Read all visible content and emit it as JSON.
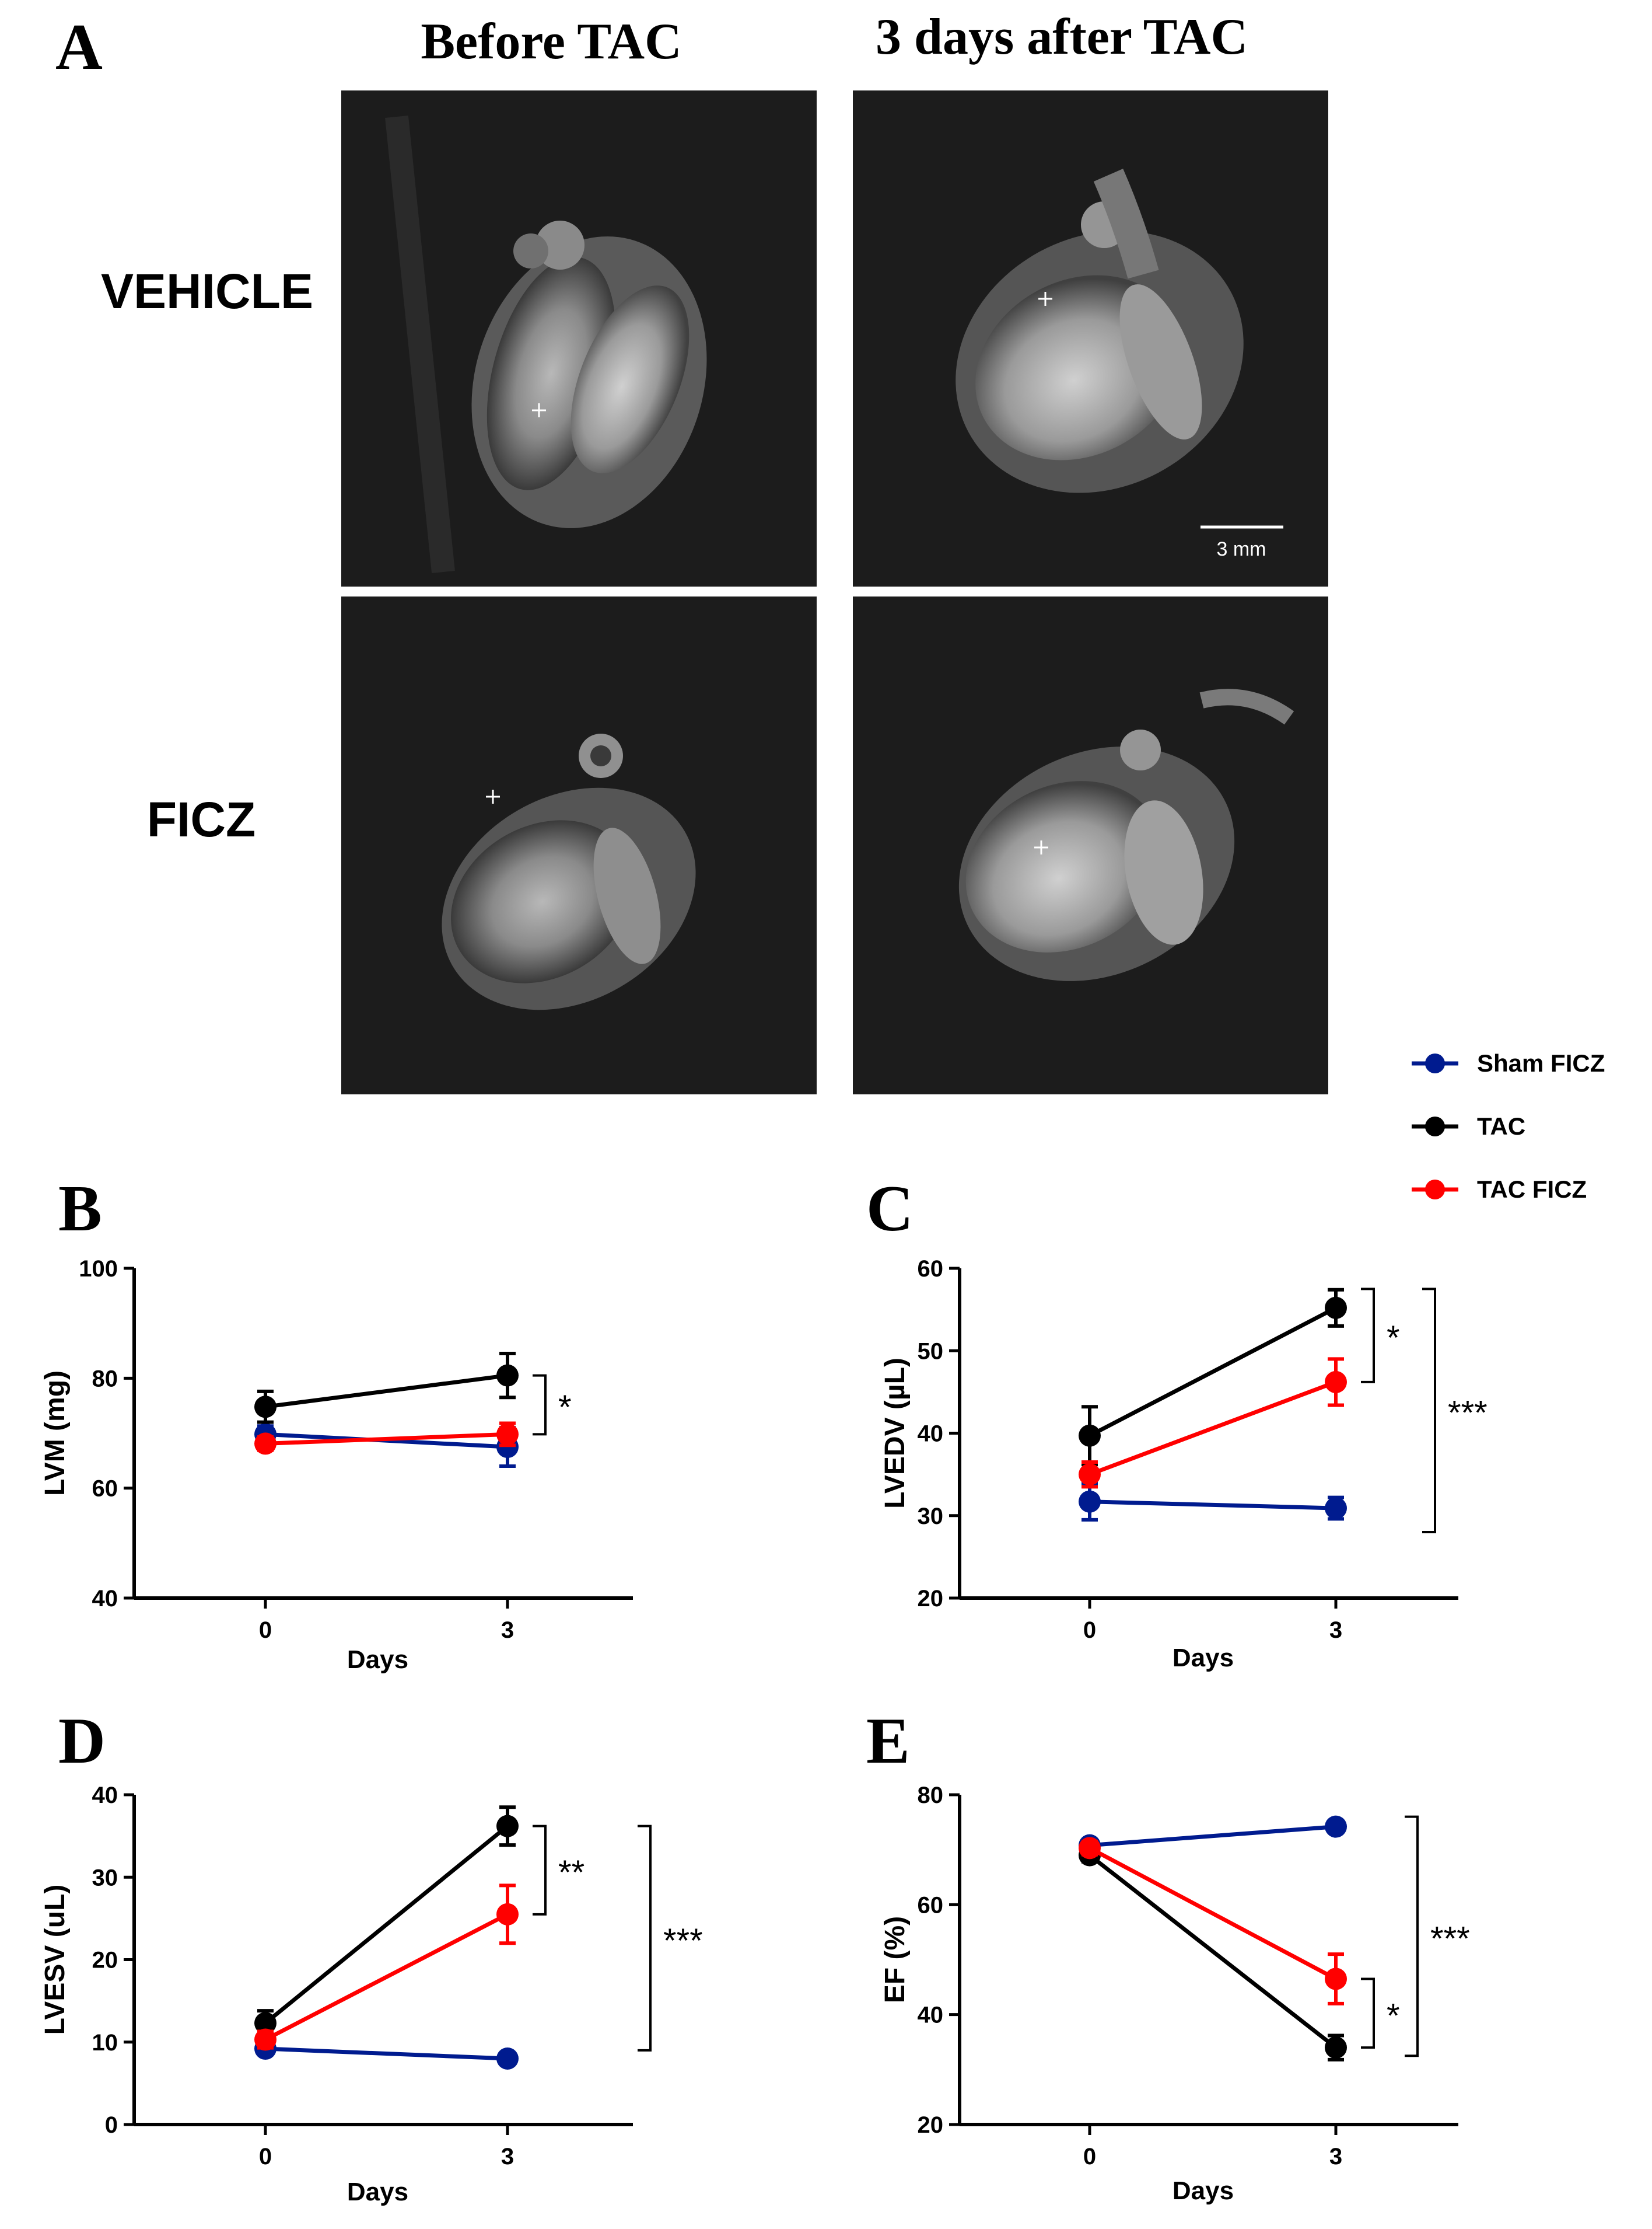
{
  "panel_a": {
    "label": "A",
    "col_headers": [
      "Before TAC",
      "3 days after TAC"
    ],
    "row_labels": [
      "VEHICLE",
      "FICZ"
    ],
    "scale_bar": "3 mm"
  },
  "legend": {
    "entries": [
      {
        "name": "Sham FICZ",
        "color": "#001b8f"
      },
      {
        "name": "TAC",
        "color": "#000000"
      },
      {
        "name": "TAC FICZ",
        "color": "#ff0000"
      }
    ]
  },
  "chart_data": [
    {
      "panel": "B",
      "type": "line",
      "ylabel": "LVM (mg)",
      "xlabel": "Days",
      "categories": [
        "0",
        "3"
      ],
      "ylim": [
        40,
        100
      ],
      "yticks": [
        40,
        60,
        80,
        100
      ],
      "series": [
        {
          "name": "Sham FICZ",
          "color": "#001b8f",
          "values": [
            69.8,
            67.5
          ],
          "errors": [
            1.5,
            3.5
          ]
        },
        {
          "name": "TAC",
          "color": "#000000",
          "values": [
            74.8,
            80.5
          ],
          "errors": [
            2.8,
            4.0
          ]
        },
        {
          "name": "TAC FICZ",
          "color": "#ff0000",
          "values": [
            68.1,
            69.8
          ],
          "errors": [
            1.2,
            2.0
          ]
        }
      ],
      "annotations": [
        {
          "text": "*",
          "from": 80.5,
          "to": 69.8,
          "level": 1
        }
      ]
    },
    {
      "panel": "C",
      "type": "line",
      "ylabel": "LVEDV (µL)",
      "xlabel": "Days",
      "categories": [
        "0",
        "3"
      ],
      "ylim": [
        20,
        60
      ],
      "yticks": [
        20,
        30,
        40,
        50,
        60
      ],
      "series": [
        {
          "name": "Sham FICZ",
          "color": "#001b8f",
          "values": [
            31.7,
            30.9
          ],
          "errors": [
            2.2,
            1.3
          ]
        },
        {
          "name": "TAC",
          "color": "#000000",
          "values": [
            39.7,
            55.2
          ],
          "errors": [
            3.5,
            2.2
          ]
        },
        {
          "name": "TAC FICZ",
          "color": "#ff0000",
          "values": [
            35.0,
            46.2
          ],
          "errors": [
            1.5,
            2.8
          ]
        }
      ],
      "annotations": [
        {
          "text": "*",
          "from": 57.5,
          "to": 46.2,
          "level": 1
        },
        {
          "text": "***",
          "from": 57.5,
          "to": 28.0,
          "level": 2
        }
      ]
    },
    {
      "panel": "D",
      "type": "line",
      "ylabel": "LVESV (uL)",
      "xlabel": "Days",
      "categories": [
        "0",
        "3"
      ],
      "ylim": [
        0,
        40
      ],
      "yticks": [
        0,
        10,
        20,
        30,
        40
      ],
      "series": [
        {
          "name": "Sham FICZ",
          "color": "#001b8f",
          "values": [
            9.2,
            8.0
          ],
          "errors": [
            0.6,
            0.4
          ]
        },
        {
          "name": "TAC",
          "color": "#000000",
          "values": [
            12.3,
            36.2
          ],
          "errors": [
            1.5,
            2.3
          ]
        },
        {
          "name": "TAC FICZ",
          "color": "#ff0000",
          "values": [
            10.3,
            25.5
          ],
          "errors": [
            1.0,
            3.5
          ]
        }
      ],
      "annotations": [
        {
          "text": "**",
          "from": 36.2,
          "to": 25.5,
          "level": 1
        },
        {
          "text": "***",
          "from": 36.2,
          "to": 9.0,
          "level": 2
        }
      ]
    },
    {
      "panel": "E",
      "type": "line",
      "ylabel": "EF (%)",
      "xlabel": "Days",
      "categories": [
        "0",
        "3"
      ],
      "ylim": [
        20,
        80
      ],
      "yticks": [
        20,
        40,
        60,
        80
      ],
      "series": [
        {
          "name": "Sham FICZ",
          "color": "#001b8f",
          "values": [
            70.8,
            74.2
          ],
          "errors": [
            1.0,
            1.0
          ]
        },
        {
          "name": "TAC",
          "color": "#000000",
          "values": [
            69.0,
            34.0
          ],
          "errors": [
            1.2,
            2.2
          ]
        },
        {
          "name": "TAC FICZ",
          "color": "#ff0000",
          "values": [
            70.3,
            46.5
          ],
          "errors": [
            1.2,
            4.5
          ]
        }
      ],
      "annotations": [
        {
          "text": "***",
          "from": 76.0,
          "to": 32.5,
          "level": 2
        },
        {
          "text": "*",
          "from": 46.5,
          "to": 34.0,
          "level": 1
        }
      ]
    }
  ]
}
